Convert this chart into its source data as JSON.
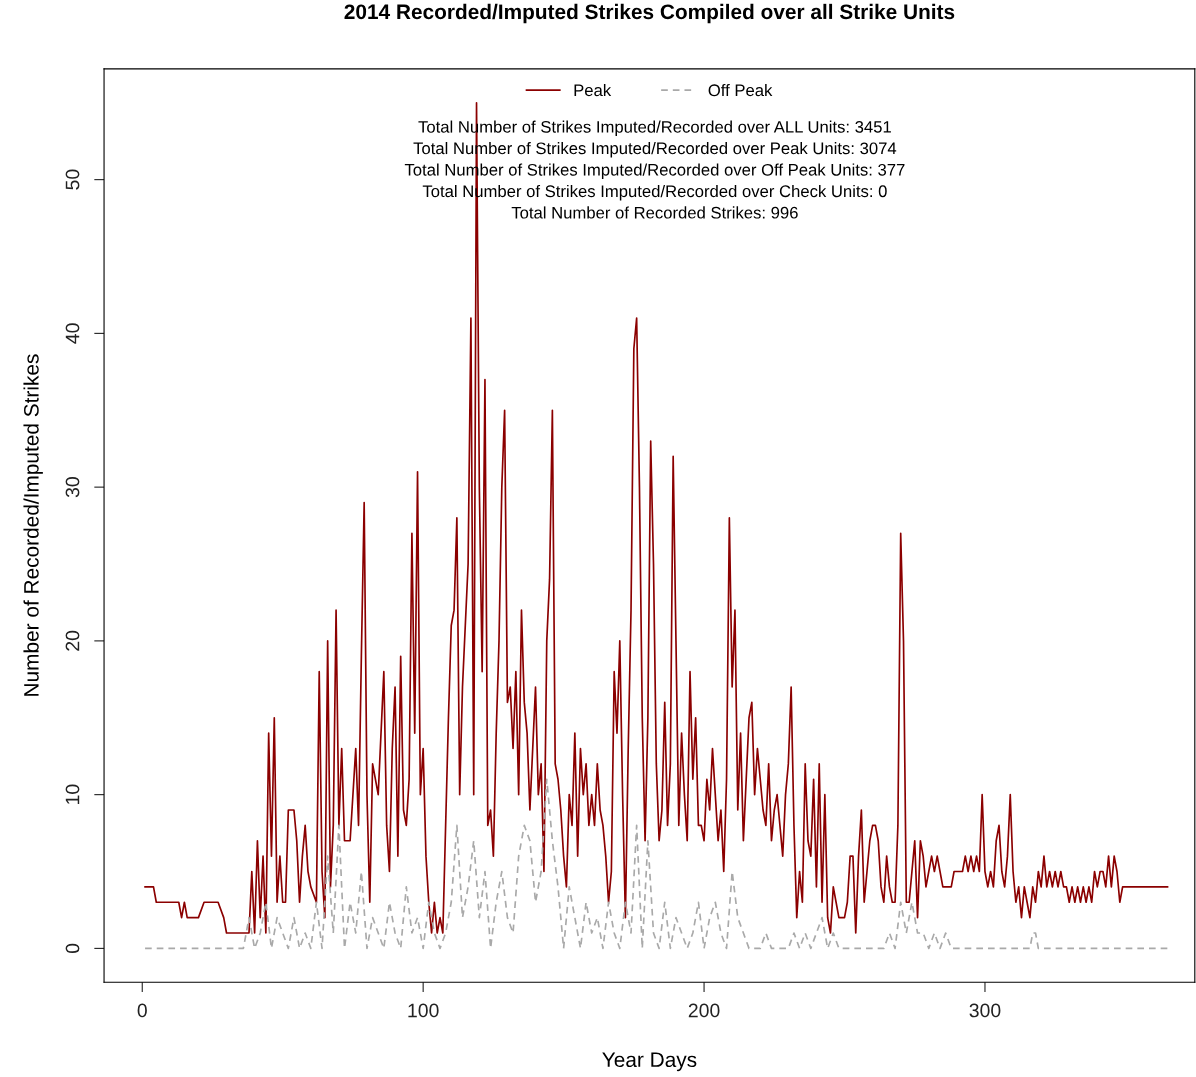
{
  "chart_data": {
    "type": "line",
    "title": "2014 Recorded/Imputed Strikes Compiled over all Strike Units",
    "xlabel": "Year Days",
    "ylabel": "Number of Recorded/Imputed Strikes",
    "xlim": [
      -13.6,
      374.7
    ],
    "ylim": [
      -2.2,
      57.2
    ],
    "xticks": [
      0,
      100,
      200,
      300
    ],
    "yticks": [
      0,
      10,
      20,
      30,
      40,
      50
    ],
    "grid": false,
    "legend": "top",
    "marker": "none",
    "annotations": [
      "Total Number of Strikes Imputed/Recorded over ALL Units: 3451",
      "Total Number of Strikes Imputed/Recorded over Peak Units: 3074",
      "Total Number of Strikes Imputed/Recorded over Off Peak Units: 377",
      "Total Number of Strikes Imputed/Recorded over Check Units: 0",
      "Total Number of Recorded Strikes: 996"
    ],
    "series": [
      {
        "name": "Peak",
        "color": "#8b0000",
        "line_style": "solid",
        "x": [
          1,
          4,
          5,
          13,
          14,
          15,
          16,
          20,
          22,
          27,
          29,
          30,
          38,
          39,
          40,
          41,
          42,
          43,
          44,
          45,
          46,
          47,
          48,
          49,
          50,
          51,
          52,
          54,
          55,
          56,
          57,
          58,
          59,
          60,
          62,
          63,
          64,
          65,
          66,
          67,
          68,
          69,
          70,
          71,
          72,
          74,
          76,
          77,
          78,
          79,
          80,
          81,
          82,
          84,
          86,
          87,
          88,
          89,
          90,
          91,
          92,
          93,
          94,
          95,
          96,
          97,
          98,
          99,
          100,
          101,
          102,
          103,
          104,
          105,
          106,
          107,
          108,
          109,
          110,
          111,
          112,
          113,
          114,
          116,
          117,
          118,
          119,
          120,
          121,
          122,
          123,
          124,
          125,
          126,
          127,
          128,
          129,
          130,
          131,
          132,
          133,
          134,
          135,
          136,
          137,
          138,
          139,
          140,
          141,
          142,
          143,
          144,
          145,
          146,
          147,
          148,
          149,
          150,
          151,
          152,
          153,
          154,
          155,
          156,
          157,
          158,
          159,
          160,
          161,
          162,
          163,
          164,
          165,
          166,
          167,
          168,
          169,
          170,
          171,
          172,
          173,
          174,
          175,
          176,
          177,
          178,
          179,
          180,
          181,
          182,
          183,
          184,
          185,
          186,
          187,
          188,
          189,
          190,
          191,
          192,
          193,
          194,
          195,
          196,
          197,
          198,
          199,
          200,
          201,
          202,
          203,
          204,
          205,
          206,
          207,
          208,
          209,
          210,
          211,
          212,
          213,
          214,
          215,
          216,
          217,
          218,
          219,
          220,
          221,
          222,
          223,
          224,
          225,
          226,
          227,
          228,
          229,
          230,
          231,
          232,
          233,
          234,
          235,
          236,
          237,
          238,
          239,
          240,
          241,
          242,
          243,
          244,
          245,
          246,
          247,
          248,
          250,
          251,
          252,
          253,
          254,
          255,
          256,
          257,
          258,
          259,
          260,
          261,
          262,
          263,
          264,
          265,
          266,
          267,
          268,
          269,
          270,
          271,
          272,
          273,
          274,
          275,
          276,
          277,
          278,
          279,
          280,
          281,
          282,
          283,
          284,
          285,
          288,
          289,
          292,
          293,
          294,
          295,
          296,
          297,
          298,
          299,
          300,
          301,
          302,
          303,
          304,
          305,
          306,
          307,
          308,
          309,
          310,
          311,
          312,
          313,
          314,
          315,
          316,
          317,
          318,
          319,
          320,
          321,
          322,
          323,
          324,
          325,
          326,
          327,
          328,
          329,
          330,
          331,
          332,
          333,
          334,
          335,
          336,
          337,
          338,
          339,
          340,
          341,
          342,
          343,
          344,
          345,
          346,
          347,
          348,
          349,
          365
        ],
        "values": [
          4,
          4,
          3,
          3,
          2,
          3,
          2,
          2,
          3,
          3,
          2,
          1,
          1,
          5,
          1,
          7,
          2,
          6,
          1,
          14,
          6,
          15,
          3,
          6,
          3,
          3,
          9,
          9,
          7,
          3,
          6,
          8,
          5,
          4,
          3,
          18,
          5,
          2,
          20,
          4,
          8,
          22,
          8,
          13,
          7,
          7,
          13,
          8,
          19,
          29,
          10,
          3,
          12,
          10,
          18,
          8,
          5,
          13,
          17,
          6,
          19,
          9,
          8,
          11,
          27,
          14,
          31,
          10,
          13,
          6,
          3,
          1,
          3,
          1,
          2,
          1,
          8,
          15,
          21,
          22,
          28,
          10,
          17,
          25,
          41,
          10,
          55,
          30,
          18,
          37,
          8,
          9,
          6,
          14,
          20,
          30,
          35,
          16,
          17,
          13,
          18,
          10,
          22,
          16,
          14,
          9,
          13,
          17,
          10,
          12,
          5,
          20,
          24,
          35,
          12,
          11,
          9,
          6,
          4,
          10,
          8,
          14,
          6,
          13,
          10,
          12,
          8,
          10,
          8,
          12,
          9,
          8,
          6,
          3,
          5,
          18,
          14,
          20,
          10,
          2,
          13,
          22,
          39,
          41,
          30,
          15,
          7,
          15,
          33,
          25,
          12,
          7,
          9,
          16,
          8,
          12,
          32,
          20,
          8,
          14,
          10,
          7,
          18,
          11,
          15,
          8,
          8,
          7,
          11,
          9,
          13,
          10,
          7,
          9,
          5,
          11,
          28,
          17,
          22,
          9,
          14,
          7,
          11,
          15,
          16,
          10,
          13,
          11,
          9,
          8,
          12,
          7,
          9,
          10,
          8,
          6,
          10,
          12,
          17,
          8,
          2,
          5,
          3,
          12,
          7,
          6,
          11,
          4,
          12,
          3,
          10,
          2,
          1,
          4,
          3,
          2,
          2,
          3,
          6,
          6,
          1,
          6,
          9,
          3,
          5,
          7,
          8,
          8,
          7,
          4,
          3,
          6,
          4,
          3,
          3,
          8,
          27,
          20,
          3,
          3,
          5,
          7,
          2,
          7,
          6,
          4,
          5,
          6,
          5,
          6,
          5,
          4,
          4,
          5,
          5,
          6,
          5,
          6,
          5,
          6,
          5,
          10,
          5,
          4,
          5,
          4,
          7,
          8,
          5,
          4,
          6,
          10,
          5,
          3,
          4,
          2,
          4,
          3,
          2,
          4,
          3,
          5,
          4,
          6,
          4,
          5,
          4,
          5,
          4,
          5,
          4,
          4,
          3,
          4,
          3,
          4,
          3,
          4,
          3,
          4,
          3,
          5,
          4,
          5,
          5,
          4,
          6,
          4,
          6,
          5,
          3,
          4,
          4
        ]
      },
      {
        "name": "Off Peak",
        "color": "#a9a9a9",
        "line_style": "dashed",
        "x": [
          1,
          36,
          38,
          40,
          42,
          44,
          46,
          48,
          50,
          52,
          54,
          56,
          58,
          60,
          62,
          64,
          66,
          68,
          70,
          72,
          74,
          76,
          78,
          80,
          82,
          84,
          86,
          88,
          90,
          92,
          94,
          96,
          98,
          100,
          102,
          104,
          106,
          108,
          110,
          112,
          114,
          116,
          118,
          120,
          122,
          124,
          126,
          128,
          130,
          132,
          134,
          136,
          138,
          140,
          142,
          144,
          146,
          148,
          150,
          152,
          154,
          156,
          158,
          160,
          162,
          164,
          166,
          168,
          170,
          172,
          174,
          176,
          178,
          180,
          182,
          184,
          186,
          188,
          190,
          192,
          194,
          196,
          198,
          200,
          202,
          204,
          206,
          208,
          210,
          212,
          214,
          216,
          220,
          222,
          224,
          230,
          232,
          234,
          236,
          238,
          240,
          242,
          244,
          246,
          248,
          264,
          266,
          268,
          270,
          272,
          274,
          276,
          278,
          280,
          282,
          284,
          286,
          288,
          316,
          317,
          318,
          319,
          365
        ],
        "values": [
          0,
          0,
          2,
          0,
          1,
          3,
          0,
          2,
          1,
          0,
          2,
          0,
          1,
          0,
          3,
          0,
          6,
          1,
          8,
          0,
          3,
          1,
          5,
          0,
          2,
          1,
          0,
          3,
          1,
          0,
          4,
          1,
          2,
          0,
          3,
          1,
          0,
          1,
          3,
          8,
          2,
          4,
          7,
          2,
          5,
          0,
          3,
          5,
          2,
          1,
          6,
          8,
          7,
          3,
          5,
          11,
          7,
          4,
          0,
          4,
          2,
          0,
          3,
          1,
          2,
          0,
          3,
          1,
          0,
          3,
          1,
          8,
          0,
          7,
          1,
          0,
          3,
          0,
          2,
          1,
          0,
          1,
          3,
          0,
          2,
          3,
          1,
          0,
          5,
          2,
          1,
          0,
          0,
          1,
          0,
          0,
          1,
          0,
          1,
          0,
          1,
          2,
          0,
          1,
          0,
          0,
          1,
          0,
          3,
          1,
          3,
          1,
          1,
          0,
          1,
          0,
          1,
          0,
          0,
          1,
          1,
          0,
          0
        ]
      }
    ]
  }
}
